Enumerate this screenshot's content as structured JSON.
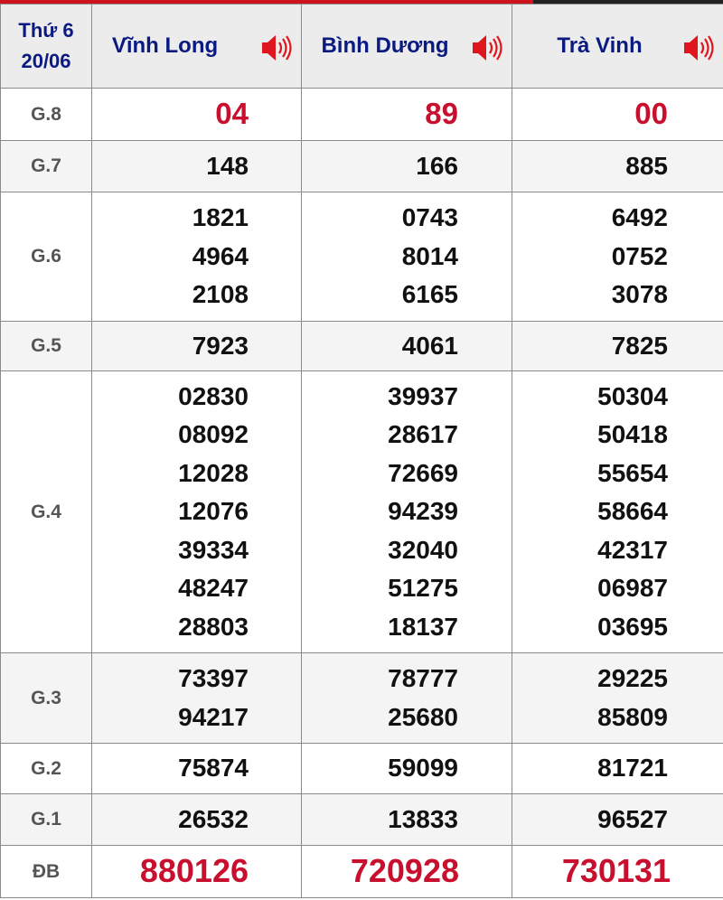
{
  "header": {
    "day": "Thứ 6",
    "date": "20/06",
    "provinces": [
      "Vĩnh Long",
      "Bình Dương",
      "Trà Vinh"
    ]
  },
  "colors": {
    "header_text": "#0a1a80",
    "highlight": "#c8102e",
    "speaker": "#e0161e"
  },
  "icons": {
    "speaker": "speaker-icon"
  },
  "rows": [
    {
      "label": "G.8",
      "values": [
        [
          "04"
        ],
        [
          "89"
        ],
        [
          "00"
        ]
      ]
    },
    {
      "label": "G.7",
      "values": [
        [
          "148"
        ],
        [
          "166"
        ],
        [
          "885"
        ]
      ]
    },
    {
      "label": "G.6",
      "values": [
        [
          "1821",
          "4964",
          "2108"
        ],
        [
          "0743",
          "8014",
          "6165"
        ],
        [
          "6492",
          "0752",
          "3078"
        ]
      ]
    },
    {
      "label": "G.5",
      "values": [
        [
          "7923"
        ],
        [
          "4061"
        ],
        [
          "7825"
        ]
      ]
    },
    {
      "label": "G.4",
      "values": [
        [
          "02830",
          "08092",
          "12028",
          "12076",
          "39334",
          "48247",
          "28803"
        ],
        [
          "39937",
          "28617",
          "72669",
          "94239",
          "32040",
          "51275",
          "18137"
        ],
        [
          "50304",
          "50418",
          "55654",
          "58664",
          "42317",
          "06987",
          "03695"
        ]
      ]
    },
    {
      "label": "G.3",
      "values": [
        [
          "73397",
          "94217"
        ],
        [
          "78777",
          "25680"
        ],
        [
          "29225",
          "85809"
        ]
      ]
    },
    {
      "label": "G.2",
      "values": [
        [
          "75874"
        ],
        [
          "59099"
        ],
        [
          "81721"
        ]
      ]
    },
    {
      "label": "G.1",
      "values": [
        [
          "26532"
        ],
        [
          "13833"
        ],
        [
          "96527"
        ]
      ]
    },
    {
      "label": "ĐB",
      "values": [
        [
          "880126"
        ],
        [
          "720928"
        ],
        [
          "730131"
        ]
      ]
    }
  ]
}
